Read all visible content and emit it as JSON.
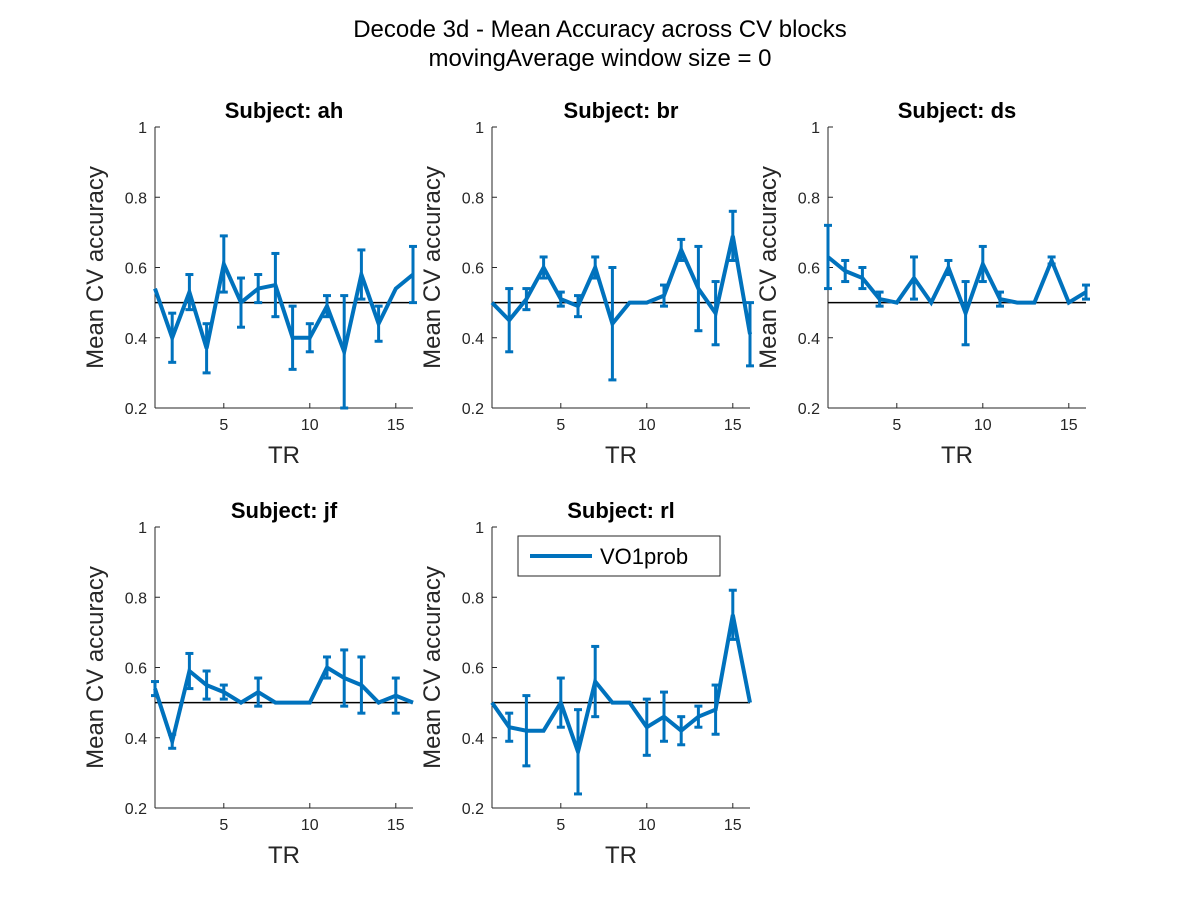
{
  "figure": {
    "title_line1": "Decode 3d - Mean Accuracy across CV blocks",
    "title_line2": "movingAverage window size = 0",
    "line_color": "#0072BD",
    "baseline_color": "#000000"
  },
  "chart_data": [
    {
      "type": "line",
      "title": "Subject: ah",
      "xlabel": "TR",
      "ylabel": "Mean CV accuracy",
      "xlim": [
        1,
        16
      ],
      "ylim": [
        0.2,
        1
      ],
      "xticks": [
        "5",
        "10",
        "15"
      ],
      "yticks": [
        "0.2",
        "0.4",
        "0.6",
        "0.8",
        "1"
      ],
      "baseline": 0.5,
      "series": [
        {
          "x": [
            1,
            2,
            3,
            4,
            5,
            6,
            7,
            8,
            9,
            10,
            11,
            12,
            13,
            14,
            15,
            16
          ],
          "y": [
            0.54,
            0.4,
            0.53,
            0.37,
            0.61,
            0.5,
            0.54,
            0.55,
            0.4,
            0.4,
            0.49,
            0.36,
            0.58,
            0.44,
            0.54,
            0.58
          ],
          "err": [
            0.0,
            0.07,
            0.05,
            0.07,
            0.08,
            0.07,
            0.04,
            0.09,
            0.09,
            0.04,
            0.03,
            0.16,
            0.07,
            0.05,
            0.0,
            0.08
          ]
        }
      ]
    },
    {
      "type": "line",
      "title": "Subject: br",
      "xlabel": "TR",
      "ylabel": "Mean CV accuracy",
      "xlim": [
        1,
        16
      ],
      "ylim": [
        0.2,
        1
      ],
      "xticks": [
        "5",
        "10",
        "15"
      ],
      "yticks": [
        "0.2",
        "0.4",
        "0.6",
        "0.8",
        "1"
      ],
      "baseline": 0.5,
      "series": [
        {
          "x": [
            1,
            2,
            3,
            4,
            5,
            6,
            7,
            8,
            9,
            10,
            11,
            12,
            13,
            14,
            15,
            16
          ],
          "y": [
            0.5,
            0.45,
            0.51,
            0.6,
            0.51,
            0.49,
            0.6,
            0.44,
            0.5,
            0.5,
            0.52,
            0.65,
            0.54,
            0.47,
            0.69,
            0.41
          ],
          "err": [
            0.0,
            0.09,
            0.03,
            0.03,
            0.02,
            0.03,
            0.03,
            0.16,
            0.0,
            0.0,
            0.03,
            0.03,
            0.12,
            0.09,
            0.07,
            0.09
          ]
        }
      ]
    },
    {
      "type": "line",
      "title": "Subject: ds",
      "xlabel": "TR",
      "ylabel": "Mean CV accuracy",
      "xlim": [
        1,
        16
      ],
      "ylim": [
        0.2,
        1
      ],
      "xticks": [
        "5",
        "10",
        "15"
      ],
      "yticks": [
        "0.2",
        "0.4",
        "0.6",
        "0.8",
        "1"
      ],
      "baseline": 0.5,
      "series": [
        {
          "x": [
            1,
            2,
            3,
            4,
            5,
            6,
            7,
            8,
            9,
            10,
            11,
            12,
            13,
            14,
            15,
            16
          ],
          "y": [
            0.63,
            0.59,
            0.57,
            0.51,
            0.5,
            0.57,
            0.5,
            0.6,
            0.47,
            0.61,
            0.51,
            0.5,
            0.5,
            0.62,
            0.5,
            0.53
          ],
          "err": [
            0.09,
            0.03,
            0.03,
            0.02,
            0.0,
            0.06,
            0.0,
            0.02,
            0.09,
            0.05,
            0.02,
            0.0,
            0.0,
            0.01,
            0.0,
            0.02
          ]
        }
      ]
    },
    {
      "type": "line",
      "title": "Subject: jf",
      "xlabel": "TR",
      "ylabel": "Mean CV accuracy",
      "xlim": [
        1,
        16
      ],
      "ylim": [
        0.2,
        1
      ],
      "xticks": [
        "5",
        "10",
        "15"
      ],
      "yticks": [
        "0.2",
        "0.4",
        "0.6",
        "0.8",
        "1"
      ],
      "baseline": 0.5,
      "series": [
        {
          "x": [
            1,
            2,
            3,
            4,
            5,
            6,
            7,
            8,
            9,
            10,
            11,
            12,
            13,
            14,
            15,
            16
          ],
          "y": [
            0.54,
            0.39,
            0.59,
            0.55,
            0.53,
            0.5,
            0.53,
            0.5,
            0.5,
            0.5,
            0.6,
            0.57,
            0.55,
            0.5,
            0.52,
            0.5
          ],
          "err": [
            0.02,
            0.02,
            0.05,
            0.04,
            0.02,
            0.0,
            0.04,
            0.0,
            0.0,
            0.0,
            0.03,
            0.08,
            0.08,
            0.0,
            0.05,
            0.0
          ]
        }
      ]
    },
    {
      "type": "line",
      "title": "Subject: rl",
      "xlabel": "TR",
      "ylabel": "Mean CV accuracy",
      "xlim": [
        1,
        16
      ],
      "ylim": [
        0.2,
        1
      ],
      "xticks": [
        "5",
        "10",
        "15"
      ],
      "yticks": [
        "0.2",
        "0.4",
        "0.6",
        "0.8",
        "1"
      ],
      "baseline": 0.5,
      "legend": {
        "label": "VO1prob",
        "placement": "top"
      },
      "series": [
        {
          "name": "VO1prob",
          "x": [
            1,
            2,
            3,
            4,
            5,
            6,
            7,
            8,
            9,
            10,
            11,
            12,
            13,
            14,
            15,
            16
          ],
          "y": [
            0.5,
            0.43,
            0.42,
            0.42,
            0.5,
            0.36,
            0.56,
            0.5,
            0.5,
            0.43,
            0.46,
            0.42,
            0.46,
            0.48,
            0.75,
            0.5
          ],
          "err": [
            0.0,
            0.04,
            0.1,
            0.0,
            0.07,
            0.12,
            0.1,
            0.0,
            0.0,
            0.08,
            0.07,
            0.04,
            0.03,
            0.07,
            0.07,
            0.0
          ]
        }
      ]
    }
  ]
}
